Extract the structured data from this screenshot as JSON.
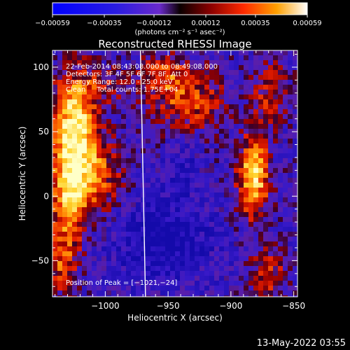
{
  "chart_data": {
    "type": "heatmap",
    "title": "Reconstructed RHESSI Image",
    "xlabel": "Heliocentric X (arcsec)",
    "ylabel": "Heliocentric Y (arcsec)",
    "xlim": [
      -1042,
      -847
    ],
    "ylim": [
      -78,
      113
    ],
    "x_ticks": [
      -1000,
      -950,
      -900,
      -850
    ],
    "y_ticks": [
      -50,
      0,
      50,
      100
    ],
    "x_tick_labels": [
      "−1000",
      "−950",
      "−900",
      "−850"
    ],
    "y_tick_labels": [
      "−50",
      "0",
      "50",
      "100"
    ],
    "colorbar": {
      "range": [
        -0.00059,
        0.00059
      ],
      "ticks": [
        -0.00059,
        -0.00035,
        -0.00012,
        0.00012,
        0.00035,
        0.00059
      ],
      "tick_labels": [
        "−0.00059",
        "−0.00035",
        "−0.00012",
        "0.00012",
        "0.00035",
        "0.00059"
      ],
      "units_label": "(photons cm⁻² s⁻¹ asec⁻²)"
    },
    "annotations": [
      "22-Feb-2014 08:43:08.000 to 08:49:08.000",
      "Detectors: 3F 4F 5F 6F 7F 8F, Att 0",
      "Energy Range: 12.0 - 25.0 keV",
      "Clean     Total counts: 1.75E+04"
    ],
    "peak_label": "Position of Peak = [−1021,−24]",
    "peak": [
      -1021,
      -24
    ],
    "limb_line": {
      "x_top": -972,
      "x_bottom": -968
    }
  },
  "footer": {
    "timestamp": "13-May-2022 03:55"
  }
}
